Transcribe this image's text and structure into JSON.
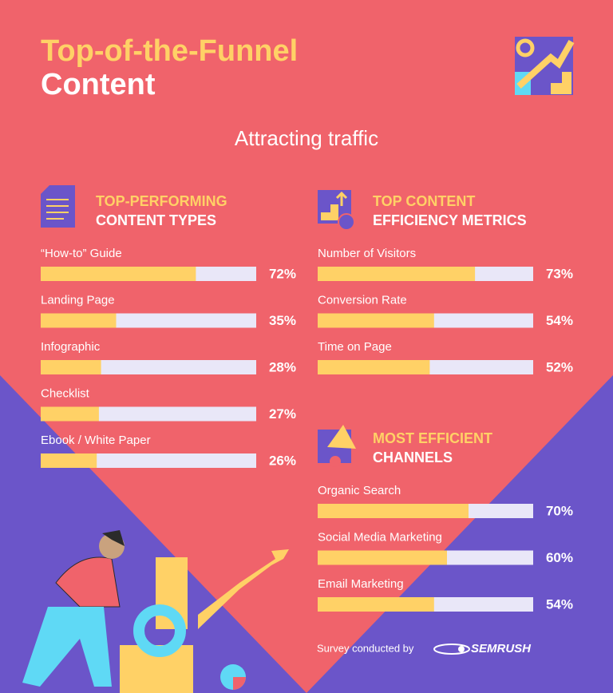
{
  "header": {
    "title": "Top-of-the-Funnel",
    "title_line2": "Content",
    "subtitle": "Attracting traffic"
  },
  "chart_data": [
    {
      "type": "bar",
      "title": "TOP-PERFORMING",
      "subtitle": "CONTENT TYPES",
      "categories": [
        "“How-to” Guide",
        "Landing Page",
        "Infographic",
        "Checklist",
        "Ebook / White Paper"
      ],
      "values": [
        72,
        35,
        28,
        27,
        26
      ],
      "value_labels": [
        "72%",
        "35%",
        "28%",
        "27%",
        "26%"
      ],
      "xlim": [
        0,
        100
      ],
      "color": "#ffd166",
      "track_color": "#e9e7f8"
    },
    {
      "type": "bar",
      "title": "TOP CONTENT",
      "subtitle": "EFFICIENCY METRICS",
      "categories": [
        "Number of Visitors",
        "Conversion Rate",
        "Time on Page"
      ],
      "values": [
        73,
        54,
        52
      ],
      "value_labels": [
        "73%",
        "54%",
        "52%"
      ],
      "xlim": [
        0,
        100
      ],
      "color": "#ffd166",
      "track_color": "#e9e7f8"
    },
    {
      "type": "bar",
      "title": "MOST EFFICIENT",
      "subtitle": "CHANNELS",
      "categories": [
        "Organic Search",
        "Social Media Marketing",
        "Email Marketing"
      ],
      "values": [
        70,
        60,
        54
      ],
      "value_labels": [
        "70%",
        "60%",
        "54%"
      ],
      "xlim": [
        0,
        100
      ],
      "color": "#ffd166",
      "track_color": "#e9e7f8"
    }
  ],
  "footer": {
    "note": "Survey conducted by",
    "brand": "SEMRUSH"
  }
}
